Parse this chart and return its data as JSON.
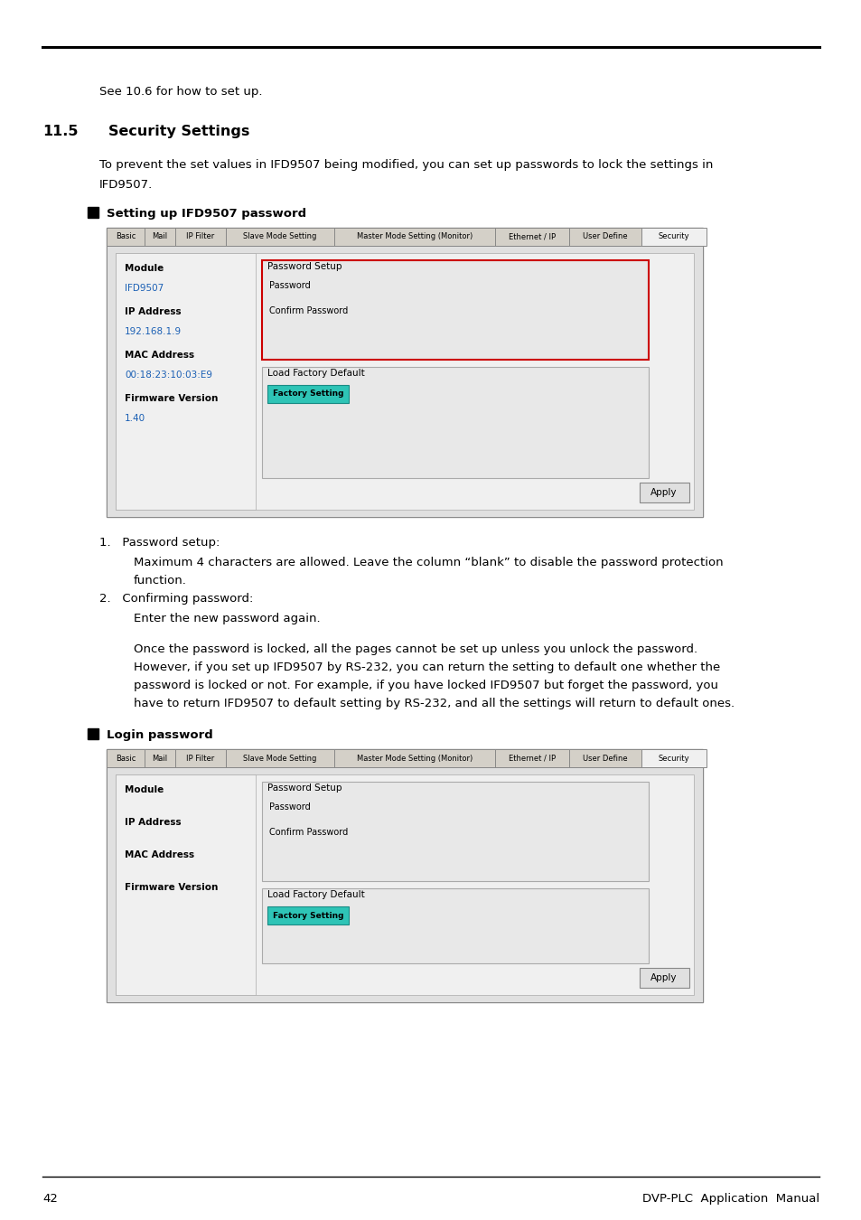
{
  "bg_color": "#ffffff",
  "page_number": "42",
  "footer_right": "DVP-PLC  Application  Manual",
  "text_color": "#000000",
  "blue_color": "#1a5fb4",
  "cyan_color": "#2ec4b6",
  "see_text": "See 10.6 for how to set up.",
  "section_title_num": "11.5",
  "section_title_txt": "Security Settings",
  "intro_line1": "To prevent the set values in IFD9507 being modified, you can set up passwords to lock the settings in",
  "intro_line2": "IFD9507.",
  "bullet1": "Setting up IFD9507 password",
  "bullet2": "Login password",
  "tabs": [
    "Basic",
    "Mail",
    "IP Filter",
    "Slave Mode Setting",
    "Master Mode Setting (Monitor)",
    "Ethernet / IP",
    "User Define",
    "Security"
  ],
  "tab_widths": [
    42,
    34,
    56,
    120,
    178,
    82,
    80,
    72
  ],
  "note1_head": "1.   Password setup:",
  "note1_body": "Maximum 4 characters are allowed. Leave the column “blank” to disable the password protection",
  "note1_body2": "function.",
  "note2_head": "2.   Confirming password:",
  "note2_body": "Enter the new password again.",
  "para1": "Once the password is locked, all the pages cannot be set up unless you unlock the password.",
  "para2": "However, if you set up IFD9507 by RS-232, you can return the setting to default one whether the",
  "para3": "password is locked or not. For example, if you have locked IFD9507 but forget the password, you",
  "para4": "have to return IFD9507 to default setting by RS-232, and all the settings will return to default ones."
}
